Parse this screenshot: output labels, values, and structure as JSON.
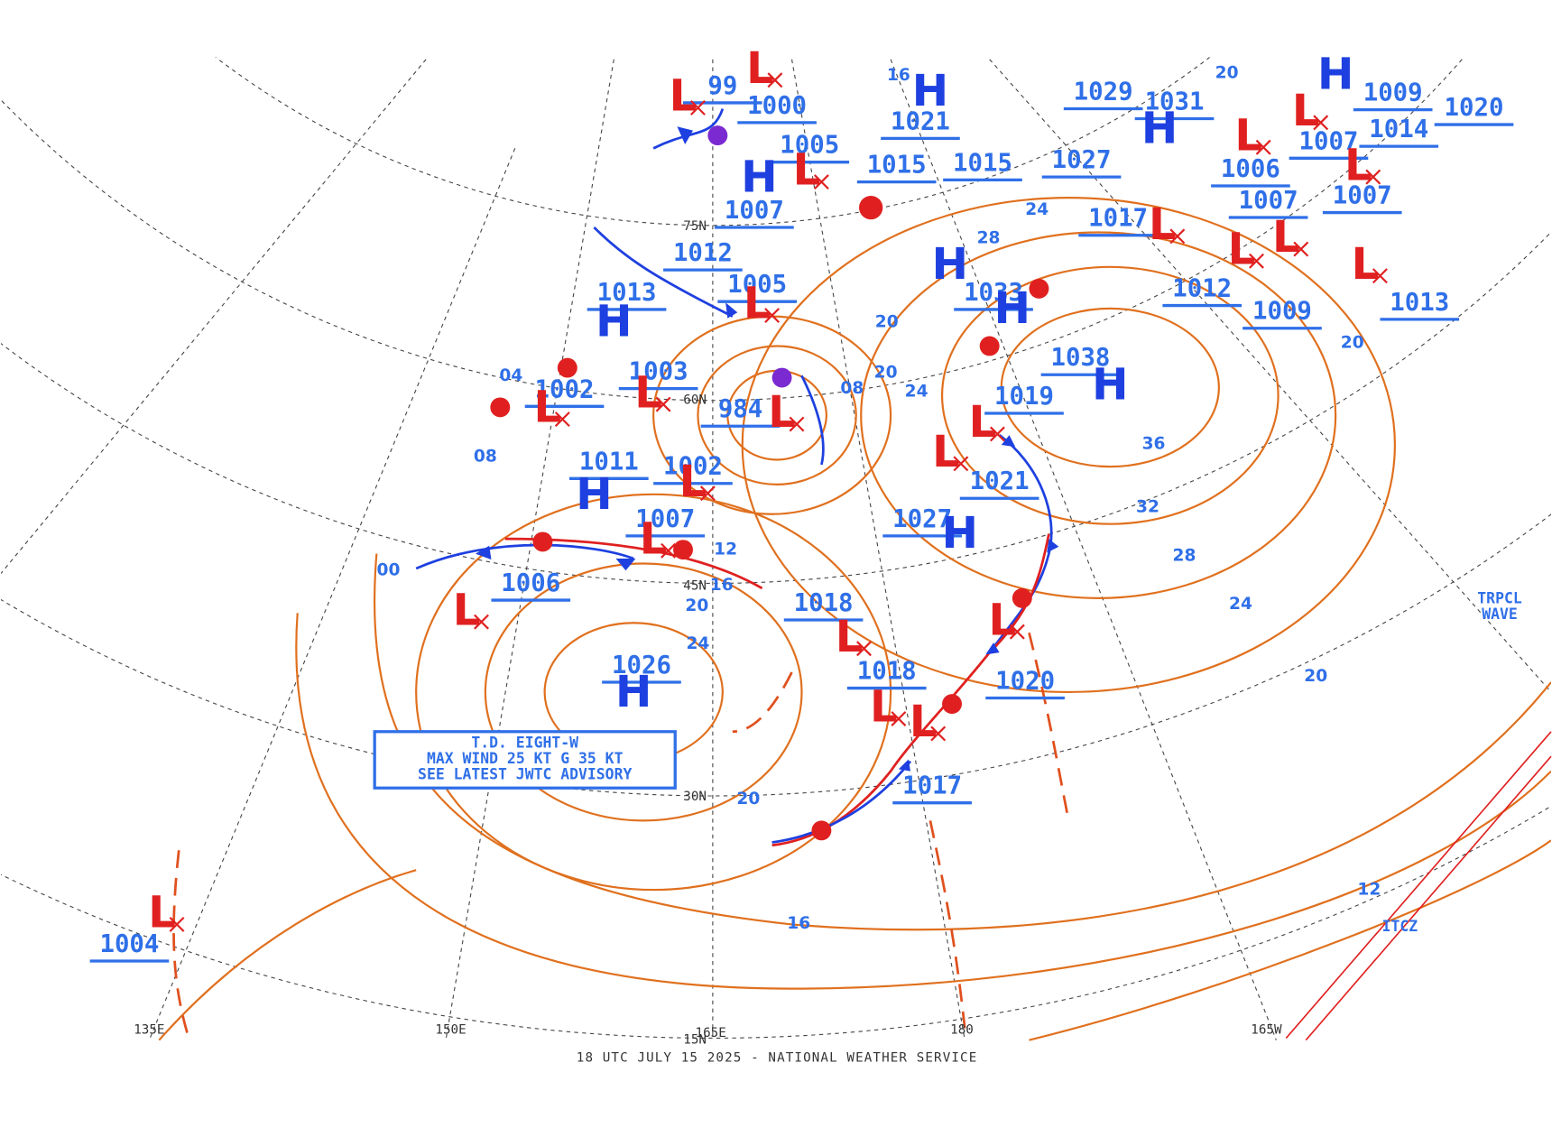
{
  "footer": "18 UTC JULY 15 2025 - NATIONAL WEATHER SERVICE",
  "advisory": [
    "T.D. EIGHT-W",
    "MAX WIND 25 KT G 35 KT",
    "SEE LATEST JWTC ADVISORY"
  ],
  "high_symbol": "H",
  "low_symbol": "L",
  "pressure_labels": [
    "99",
    "1000",
    "1005",
    "1007",
    "1012",
    "1005",
    "1013",
    "1003",
    "1002",
    "984",
    "1011",
    "1002",
    "1007",
    "1006",
    "1026",
    "1018",
    "1018",
    "1017",
    "1020",
    "1021",
    "1027",
    "1019",
    "1038",
    "1033",
    "1015",
    "1015",
    "1021",
    "1029",
    "1031",
    "1027",
    "1017",
    "1012",
    "1009",
    "1013",
    "1006",
    "1007",
    "1007",
    "1007",
    "1014",
    "1009",
    "1020",
    "1004"
  ],
  "isobar_labels": [
    "36",
    "32",
    "28",
    "24",
    "20",
    "16",
    "12",
    "20",
    "24",
    "20",
    "16",
    "12",
    "08",
    "04",
    "00",
    "08",
    "20",
    "20",
    "24",
    "28",
    "24",
    "20",
    "16",
    "20"
  ],
  "longitude_labels": [
    "135E",
    "150E",
    "165E",
    "180",
    "165W"
  ],
  "latitude_labels": [
    "75N",
    "60N",
    "45N",
    "30N",
    "15N"
  ],
  "feature_labels": [
    "TRPCL",
    "WAVE",
    "ITCZ"
  ]
}
